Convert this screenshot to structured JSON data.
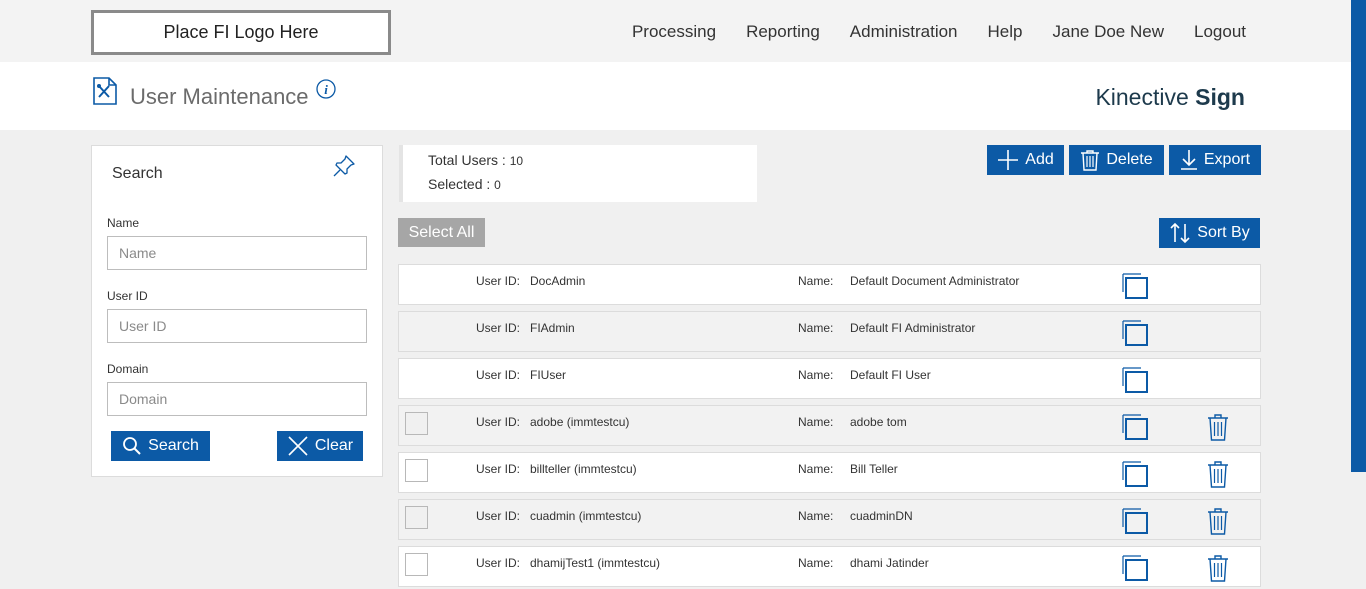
{
  "topnav": {
    "logo_text": "Place FI Logo Here",
    "items": [
      "Processing",
      "Reporting",
      "Administration",
      "Help",
      "Jane Doe New",
      "Logout"
    ]
  },
  "header": {
    "page_title": "User Maintenance",
    "brand_regular": "Kinective ",
    "brand_bold": "Sign"
  },
  "search": {
    "title": "Search",
    "fields": [
      {
        "label": "Name",
        "placeholder": "Name",
        "value": ""
      },
      {
        "label": "User ID",
        "placeholder": "User ID",
        "value": ""
      },
      {
        "label": "Domain",
        "placeholder": "Domain",
        "value": ""
      }
    ],
    "search_button": "Search",
    "clear_button": "Clear"
  },
  "stats": {
    "total_label": "Total Users : ",
    "total_value": "10",
    "selected_label": "Selected : ",
    "selected_value": "0"
  },
  "toolbar": {
    "add": "Add",
    "delete": "Delete",
    "export": "Export",
    "select_all": "Select All",
    "sort_by": "Sort By"
  },
  "users": {
    "userid_label": "User ID:",
    "name_label": "Name:",
    "rows": [
      {
        "user_id": "DocAdmin",
        "name": "Default Document Administrator",
        "selectable": false
      },
      {
        "user_id": "FIAdmin",
        "name": "Default FI Administrator",
        "selectable": false
      },
      {
        "user_id": "FIUser",
        "name": "Default FI User",
        "selectable": false
      },
      {
        "user_id": "adobe (immtestcu)",
        "name": "adobe tom",
        "selectable": true
      },
      {
        "user_id": "billteller (immtestcu)",
        "name": "Bill Teller",
        "selectable": true
      },
      {
        "user_id": "cuadmin (immtestcu)",
        "name": "cuadminDN",
        "selectable": true
      },
      {
        "user_id": "dhamijTest1 (immtestcu)",
        "name": "dhami Jatinder",
        "selectable": true
      }
    ]
  },
  "colors": {
    "accent": "#0c5aa6",
    "brand_text": "#1d3a4c",
    "select_all_bg": "#a6a6a6"
  }
}
